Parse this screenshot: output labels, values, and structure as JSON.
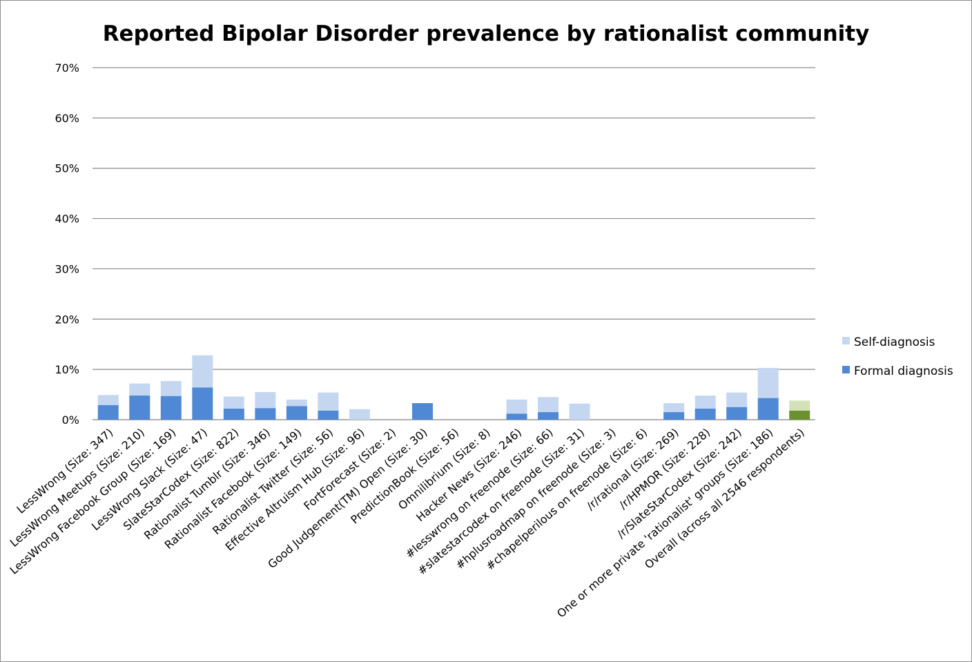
{
  "chart_data": {
    "type": "bar",
    "stacked": true,
    "title": "Reported Bipolar Disorder prevalence by rationalist community",
    "xlabel": "",
    "ylabel": "",
    "ylim": [
      0,
      70
    ],
    "yticks": [
      "0%",
      "10%",
      "20%",
      "30%",
      "40%",
      "50%",
      "60%",
      "70%"
    ],
    "grid": true,
    "legend_position": "right",
    "categories": [
      "LessWrong (Size: 347)",
      "LessWrong Meetups (Size: 210)",
      "LessWrong Facebook Group (Size: 169)",
      "LessWrong Slack (Size: 47)",
      "SlateStarCodex (Size: 822)",
      "Rationalist Tumblr (Size: 346)",
      "Rationalist Facebook (Size: 149)",
      "Rationalist Twitter (Size: 56)",
      "Effective Altruism Hub (Size: 96)",
      "FortForecast (Size: 2)",
      "Good Judgement(TM) Open  (Size: 30)",
      "PredictionBook (Size: 56)",
      "Omnilibrium (Size: 8)",
      "Hacker News (Size: 246)",
      "#lesswrong on freenode  (Size: 66)",
      "#slatestarcodex on freenode  (Size: 31)",
      "#hplusroadmap on freenode  (Size: 3)",
      "#chapelperilous on freenode (Size: 6)",
      "/r/rational (Size: 269)",
      "/r/HPMOR (Size: 228)",
      "/r/SlateStarCodex (Size: 242)",
      "One or more private 'rationalist' groups  (Size: 186)",
      "Overall (across all 2546 respondents)"
    ],
    "series": [
      {
        "name": "Formal diagnosis",
        "color": "#4f88d4",
        "highlight_color": "#6a902f",
        "values": [
          2.9,
          4.8,
          4.7,
          6.4,
          2.2,
          2.3,
          2.7,
          1.8,
          0,
          0,
          3.3,
          0,
          0,
          1.2,
          1.5,
          0,
          0,
          0,
          1.5,
          2.2,
          2.5,
          4.3,
          1.8
        ]
      },
      {
        "name": "Self-diagnosis",
        "color": "#c5d7f0",
        "highlight_color": "#d3e3b7",
        "values": [
          2.0,
          2.4,
          3.0,
          6.4,
          2.4,
          3.2,
          1.3,
          3.6,
          2.1,
          0,
          0,
          0,
          0,
          2.8,
          3.0,
          3.2,
          0,
          0,
          1.8,
          2.6,
          2.9,
          6.0,
          2.0
        ]
      }
    ]
  }
}
